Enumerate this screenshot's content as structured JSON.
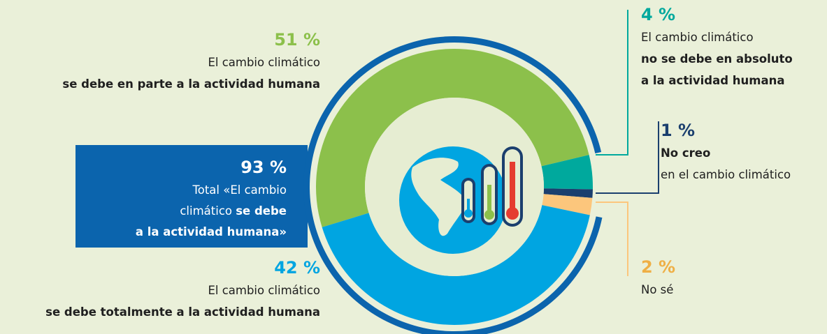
{
  "chart_data": {
    "type": "donut",
    "values": [
      51,
      4,
      1,
      2,
      42
    ],
    "value_labels": [
      "51 %",
      "4 %",
      "1 %",
      "2 %",
      "42 %"
    ],
    "colors": [
      "#8cc04b",
      "#00a99d",
      "#1b3f6e",
      "#fcc67c",
      "#00a5e1"
    ],
    "label_colors": [
      "#8cc04b",
      "#00a99d",
      "#1b3f6e",
      "#efaf45",
      "#00a5e1"
    ],
    "labels": [
      [
        "El cambio climático",
        "se debe en parte a la actividad humana"
      ],
      [
        "El cambio climático",
        "no se debe en absoluto",
        "a la actividad humana"
      ],
      [
        "No creo",
        "en el cambio climático"
      ],
      [
        "No sé"
      ],
      [
        "El cambio climático",
        "se debe totalmente a la actividad humana"
      ]
    ],
    "total": {
      "value": 93,
      "value_label": "93 %",
      "color": "#0b64ad",
      "lines": [
        "Total «El cambio",
        "climático ",
        "se debe",
        "a la actividad humana»"
      ]
    }
  }
}
